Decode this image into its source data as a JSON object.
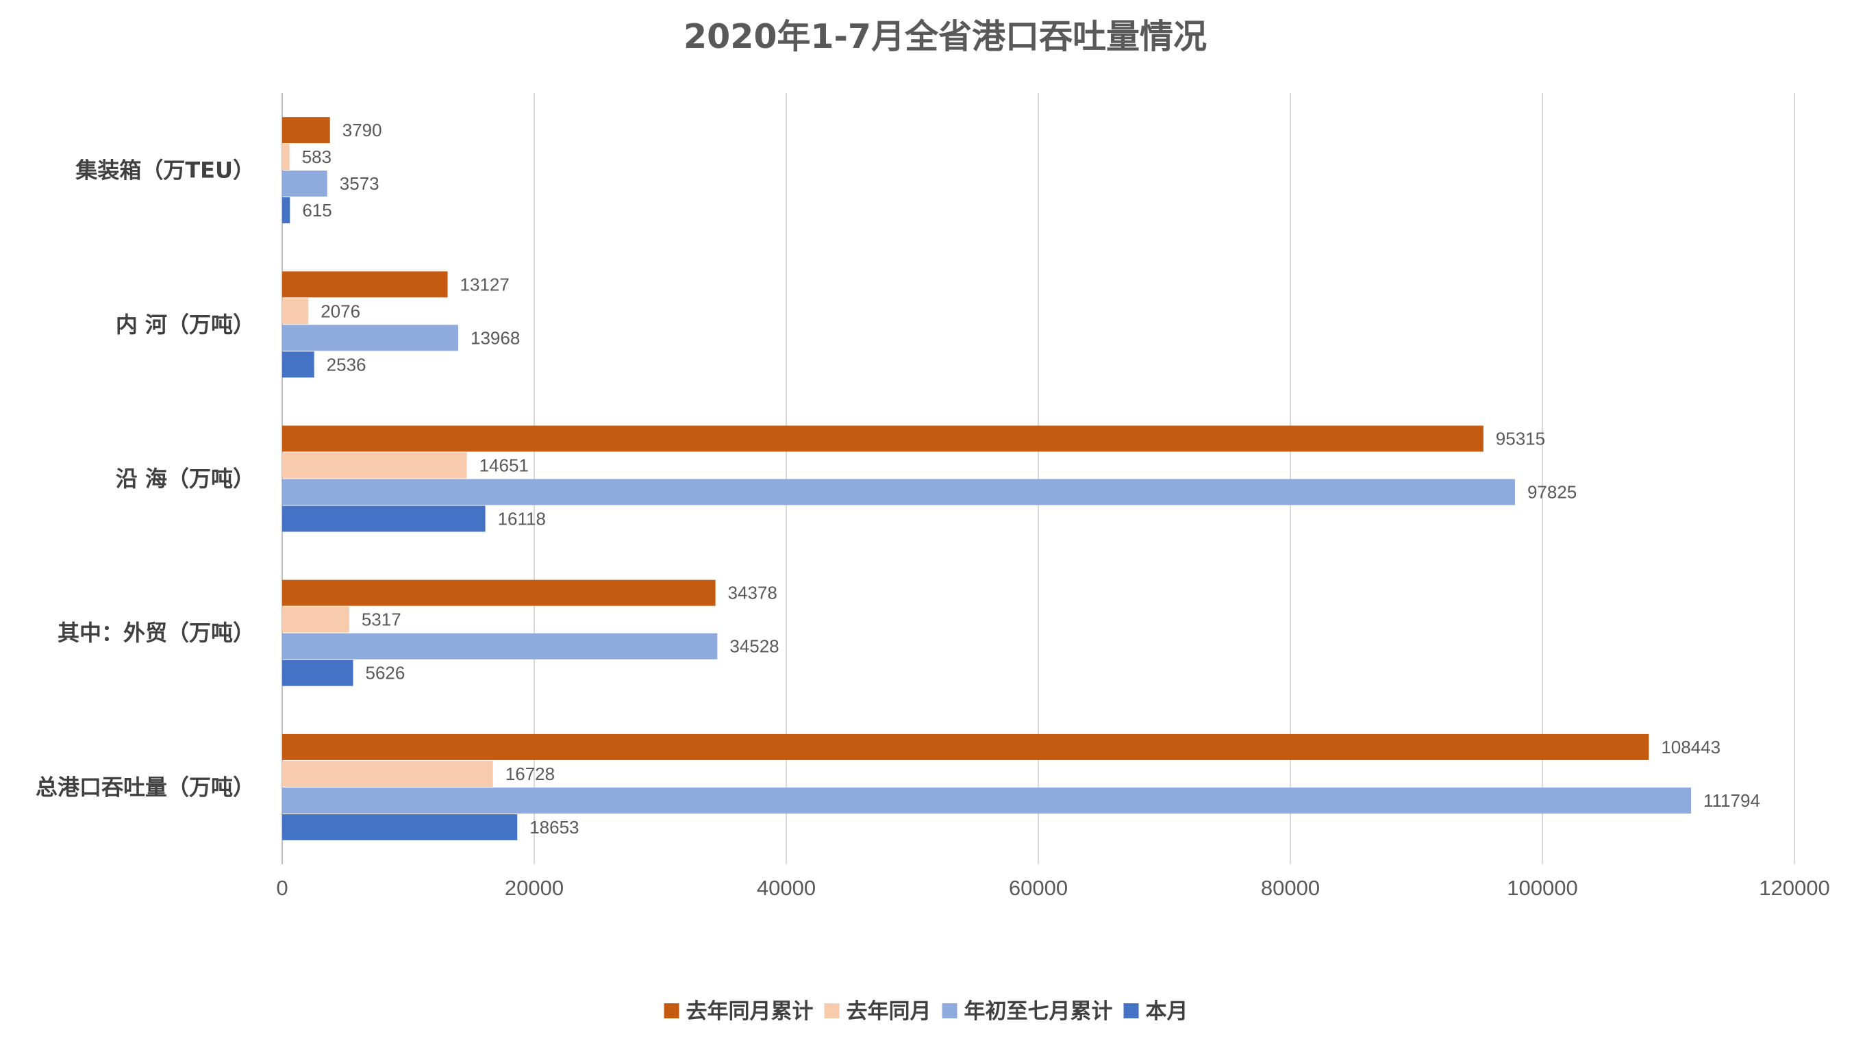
{
  "chart_data": {
    "type": "bar",
    "orientation": "horizontal",
    "title": "2020年1-7月全省港口吞吐量情况",
    "categories": [
      "集装箱（万TEU）",
      "内 河（万吨）",
      "沿 海（万吨）",
      "其中：外贸（万吨）",
      "总港口吞吐量（万吨）"
    ],
    "series": [
      {
        "name": "去年同月累计",
        "color": "#c55a11",
        "values": [
          3790,
          13127,
          95315,
          34378,
          108443
        ]
      },
      {
        "name": "去年同月",
        "color": "#f8cbad",
        "values": [
          583,
          2076,
          14651,
          5317,
          16728
        ]
      },
      {
        "name": "年初至七月累计",
        "color": "#8faadc",
        "values": [
          3573,
          13968,
          97825,
          34528,
          111794
        ]
      },
      {
        "name": "本月",
        "color": "#4472c4",
        "values": [
          615,
          2536,
          16118,
          5626,
          18653
        ]
      }
    ],
    "xlim": [
      0,
      120000
    ],
    "xticks": [
      0,
      20000,
      40000,
      60000,
      80000,
      100000,
      120000
    ],
    "xlabel": "",
    "ylabel": "",
    "grid": true,
    "legend_position": "bottom",
    "data_labels": true
  }
}
